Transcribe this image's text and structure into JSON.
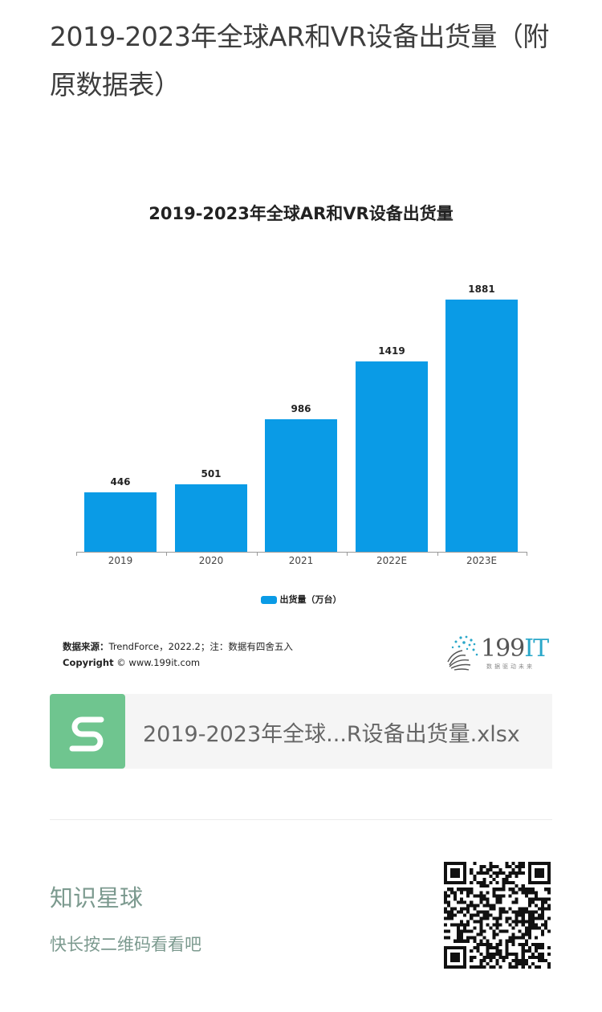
{
  "article": {
    "title": "2019-2023年全球AR和VR设备出货量（附原数据表）"
  },
  "chart": {
    "title": "2019-2023年全球AR和VR设备出货量",
    "legend_label": "出货量（万台）",
    "bar_color": "#0a9be6",
    "source_label": "数据来源：",
    "source_text": "TrendForce，2022.2；注：数据有四舍五入",
    "copyright_label": "Copyright",
    "copyright_text": "© www.199it.com",
    "logo_text": "199",
    "logo_text_accent": "IT",
    "logo_tagline": "数据驱动未来"
  },
  "chart_data": {
    "type": "bar",
    "title": "2019-2023年全球AR和VR设备出货量",
    "categories": [
      "2019",
      "2020",
      "2021",
      "2022E",
      "2023E"
    ],
    "series": [
      {
        "name": "出货量（万台）",
        "values": [
          446,
          501,
          986,
          1419,
          1881
        ],
        "color": "#0a9be6"
      }
    ],
    "xlabel": "",
    "ylabel": "",
    "ylim": [
      0,
      1881
    ],
    "grid": false,
    "legend_position": "bottom",
    "data_labels": true
  },
  "attachment": {
    "icon": "spreadsheet-s-icon",
    "icon_color": "#6fc58f",
    "file_name": "2019-2023年全球...R设备出货量.xlsx"
  },
  "footer": {
    "title": "知识星球",
    "subtitle": "快长按二维码看看吧",
    "text_color": "#7c9a8f",
    "qr_icon": "qr-code-icon"
  }
}
